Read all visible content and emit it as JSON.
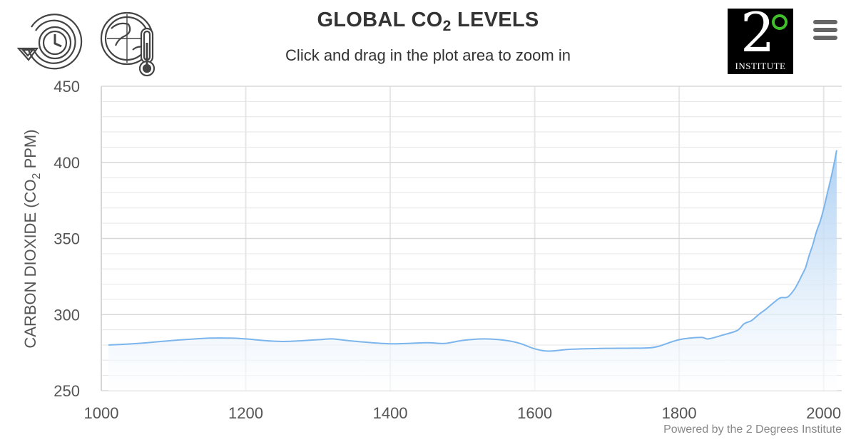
{
  "header": {
    "title": "GLOBAL CO",
    "title_sub": "2",
    "title_suffix": " LEVELS",
    "subtitle": "Click and drag in the plot area to zoom in"
  },
  "logo": {
    "numeral": "2",
    "word": "INSTITUTE"
  },
  "icons": {
    "history": "history-icon",
    "climate": "globe-thermometer-icon",
    "menu": "hamburger-menu-icon"
  },
  "credit": "Powered by the 2 Degrees Institute",
  "colors": {
    "line": "#7cb5ec",
    "fill_top": "#a9cdf2",
    "fill_bottom": "#ffffff",
    "grid": "#e6e6e6",
    "text": "#333333",
    "logo_degree": "#3fbf2a"
  },
  "chart_data": {
    "type": "area",
    "title": "GLOBAL CO2 LEVELS",
    "subtitle": "Click and drag in the plot area to zoom in",
    "xlabel": "",
    "ylabel": "CARBON DIOXIDE (CO2 PPM)",
    "ylabel_parts": [
      "CARBON DIOXIDE (CO",
      "2",
      " PPM)"
    ],
    "xlim": [
      1000,
      2025
    ],
    "ylim": [
      250,
      450
    ],
    "xticks": [
      1000,
      1200,
      1400,
      1600,
      1800,
      2000
    ],
    "yticks": [
      250,
      300,
      350,
      400,
      450
    ],
    "grid": true,
    "legend": "none",
    "series": [
      {
        "x": [
          1010,
          1050,
          1100,
          1150,
          1180,
          1200,
          1250,
          1300,
          1320,
          1350,
          1400,
          1450,
          1475,
          1500,
          1530,
          1560,
          1580,
          1600,
          1620,
          1650,
          1700,
          1750,
          1770,
          1800,
          1830,
          1840,
          1860,
          1880,
          1890,
          1900,
          1910,
          1920,
          1930,
          1940,
          1950,
          1960,
          1970,
          1975,
          1980,
          1985,
          1990,
          1995,
          2000,
          2005,
          2010,
          2015,
          2018
        ],
        "y": [
          280,
          281,
          283,
          284.5,
          284.5,
          284,
          282.3,
          283.5,
          284,
          282.5,
          280.8,
          281.5,
          281,
          283,
          284,
          283,
          281,
          277.5,
          276,
          277.2,
          277.8,
          278,
          279,
          283.5,
          285,
          284,
          286.5,
          289.5,
          294,
          296,
          300,
          303.5,
          307.5,
          311,
          311.5,
          317,
          326,
          331,
          339,
          346,
          354.5,
          361,
          369.5,
          379.5,
          389.5,
          400.5,
          408
        ]
      }
    ]
  }
}
